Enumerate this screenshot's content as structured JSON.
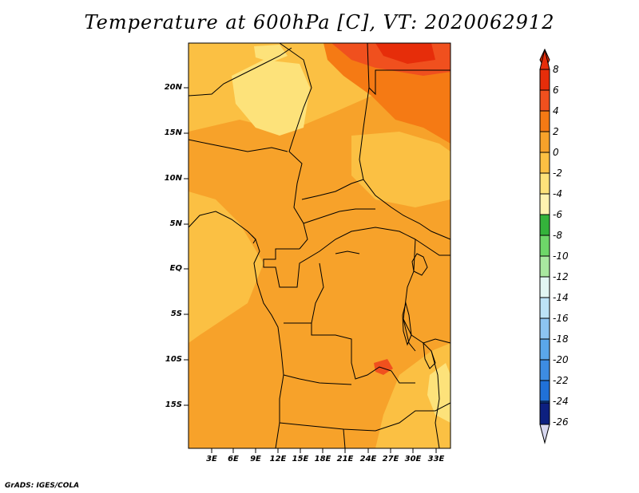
{
  "title": "Temperature at 600hPa [C], VT: 2020062912",
  "footer": "GrADS: IGES/COLA",
  "lat_ticks": [
    "20N",
    "15N",
    "10N",
    "5N",
    "EQ",
    "5S",
    "10S",
    "15S"
  ],
  "lon_ticks": [
    "3E",
    "6E",
    "9E",
    "12E",
    "15E",
    "18E",
    "21E",
    "24E",
    "27E",
    "30E",
    "33E"
  ],
  "colorbar": {
    "labels": [
      "8",
      "6",
      "4",
      "2",
      "0",
      "-2",
      "-4",
      "-6",
      "-8",
      "-10",
      "-12",
      "-14",
      "-16",
      "-18",
      "-20",
      "-22",
      "-24",
      "-26"
    ],
    "colors": [
      "#e62d0a",
      "#f0501e",
      "#f57a14",
      "#f7a22a",
      "#fbc043",
      "#fde27a",
      "#fff3b0",
      "#34b33b",
      "#6ed669",
      "#a9e8a0",
      "#e2f6f3",
      "#bde3f7",
      "#8cc4f2",
      "#5aa7ea",
      "#3d8ce2",
      "#2071d8",
      "#1356c7",
      "#0a37a6",
      "#0d2080"
    ]
  },
  "map_colors": {
    "hot_core": "#e62d0a",
    "hot": "#f0501e",
    "warm": "#f7a22a",
    "mild": "#fbc043",
    "cool": "#fde27a"
  }
}
